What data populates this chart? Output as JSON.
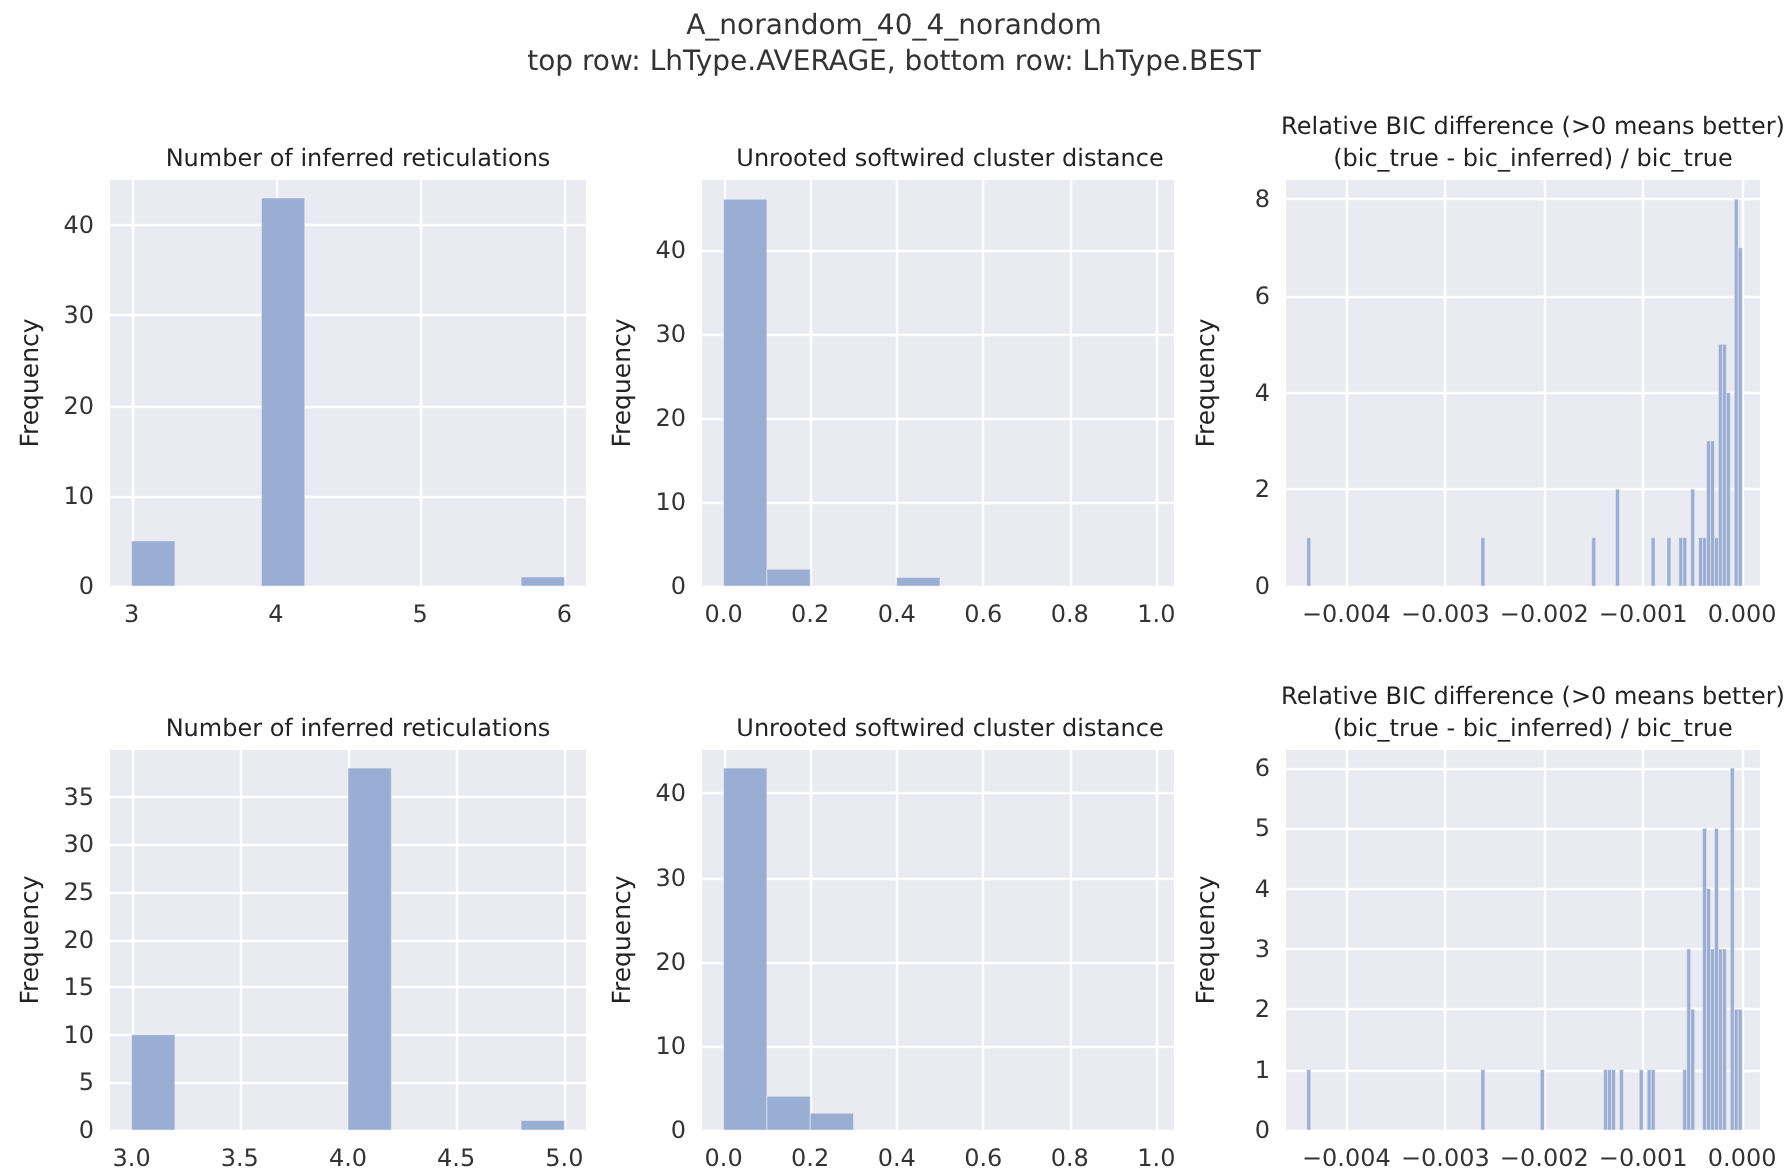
{
  "chart_data": [
    {
      "type": "histogram",
      "title": "Number of inferred reticulations",
      "ylabel": "Frequency",
      "annotations": [
        "A_norandom_40_4_norandom",
        "top row: LhType.AVERAGE, bottom row: LhType.BEST"
      ],
      "bins": [
        3,
        3.3,
        3.6,
        3.9,
        4.2,
        4.5,
        4.8,
        5.1,
        5.4,
        5.7,
        6
      ],
      "values": [
        5,
        0,
        0,
        43,
        0,
        0,
        0,
        0,
        0,
        1
      ],
      "color": "#9aaed3",
      "xlim": [
        2.85,
        6.15
      ],
      "xticks": [
        3,
        4,
        5,
        6
      ],
      "ylim": [
        0,
        45
      ],
      "yticks": [
        0,
        10,
        20,
        30,
        40
      ],
      "grid": true
    },
    {
      "type": "histogram",
      "title": "Unrooted softwired cluster distance",
      "ylabel": "Frequency",
      "bins": [
        0,
        0.1,
        0.2,
        0.3,
        0.4,
        0.5,
        0.6,
        0.7,
        0.8,
        0.9,
        1
      ],
      "values": [
        46,
        2,
        0,
        0,
        1,
        0,
        0,
        0,
        0,
        0
      ],
      "color": "#9aaed3",
      "xlim": [
        -0.05,
        1.05
      ],
      "xticks": [
        {
          "value": 0,
          "label": "0.0"
        },
        {
          "value": 0.2,
          "label": "0.2"
        },
        {
          "value": 0.4,
          "label": "0.4"
        },
        {
          "value": 0.6,
          "label": "0.6"
        },
        {
          "value": 0.8,
          "label": "0.8"
        },
        {
          "value": 1,
          "label": "1.0"
        }
      ],
      "ylim": [
        0,
        48.3
      ],
      "yticks": [
        0,
        10,
        20,
        30,
        40
      ],
      "grid": true
    },
    {
      "type": "histogram",
      "title": "Relative BIC difference (>0 means better)\n(bic_true - bic_inferred) / bic_true",
      "ylabel": "Frequency",
      "bins": [
        -0.0044,
        -0.00436,
        -0.00432,
        -0.00428,
        -0.00424,
        -0.0042,
        -0.00416,
        -0.00412,
        -0.00408,
        -0.00404,
        -0.004,
        -0.00396,
        -0.00392,
        -0.00388,
        -0.00384,
        -0.0038,
        -0.00376,
        -0.00372,
        -0.00368,
        -0.00364,
        -0.0036,
        -0.00356,
        -0.00352,
        -0.00348,
        -0.00344,
        -0.0034,
        -0.00336,
        -0.00332,
        -0.00328,
        -0.00324,
        -0.0032,
        -0.00316,
        -0.00312,
        -0.00308,
        -0.00304,
        -0.003,
        -0.00296,
        -0.00292,
        -0.00288,
        -0.00284,
        -0.0028,
        -0.00276,
        -0.00272,
        -0.00268,
        -0.00264,
        -0.0026,
        -0.00256,
        -0.00252,
        -0.00248,
        -0.00244,
        -0.0024,
        -0.00236,
        -0.00232,
        -0.00228,
        -0.00224,
        -0.0022,
        -0.00216,
        -0.00212,
        -0.00208,
        -0.00204,
        -0.002,
        -0.00196,
        -0.00192,
        -0.00188,
        -0.00184,
        -0.0018,
        -0.00176,
        -0.00172,
        -0.00168,
        -0.00164,
        -0.0016,
        -0.00156,
        -0.00152,
        -0.00148,
        -0.00144,
        -0.0014,
        -0.00136,
        -0.00132,
        -0.00128,
        -0.00124,
        -0.0012,
        -0.00116,
        -0.00112,
        -0.00108,
        -0.00104,
        -0.001,
        -0.00096,
        -0.00092,
        -0.00088,
        -0.00084,
        -0.0008,
        -0.00076,
        -0.00072,
        -0.00068,
        -0.00064,
        -0.0006,
        -0.00056,
        -0.00052,
        -0.00048,
        -0.00044,
        -0.0004,
        -0.00036,
        -0.00032,
        -0.00028,
        -0.00024,
        -0.0002,
        -0.00016,
        -0.00012,
        -8e-05,
        -4e-05,
        0
      ],
      "values": [
        1,
        0,
        0,
        0,
        0,
        0,
        0,
        0,
        0,
        0,
        0,
        0,
        0,
        0,
        0,
        0,
        0,
        0,
        0,
        0,
        0,
        0,
        0,
        0,
        0,
        0,
        0,
        0,
        0,
        0,
        0,
        0,
        0,
        0,
        0,
        0,
        0,
        0,
        0,
        0,
        0,
        0,
        0,
        0,
        1,
        0,
        0,
        0,
        0,
        0,
        0,
        0,
        0,
        0,
        0,
        0,
        0,
        0,
        0,
        0,
        0,
        0,
        0,
        0,
        0,
        0,
        0,
        0,
        0,
        0,
        0,
        0,
        1,
        0,
        0,
        0,
        0,
        0,
        2,
        0,
        0,
        0,
        0,
        0,
        0,
        0,
        0,
        1,
        0,
        0,
        0,
        1,
        0,
        0,
        1,
        1,
        0,
        2,
        0,
        1,
        1,
        3,
        3,
        1,
        5,
        5,
        4,
        0,
        8,
        7
      ],
      "color": "#9aaed3",
      "xlim": [
        -0.00461,
        0.00018
      ],
      "xticks": [
        {
          "value": -0.004,
          "label": "−0.004"
        },
        {
          "value": -0.003,
          "label": "−0.003"
        },
        {
          "value": -0.002,
          "label": "−0.002"
        },
        {
          "value": -0.001,
          "label": "−0.001"
        },
        {
          "value": 0,
          "label": "0.000"
        }
      ],
      "ylim": [
        0,
        8.4
      ],
      "yticks": [
        0,
        2,
        4,
        6,
        8
      ],
      "grid": true
    },
    {
      "type": "histogram",
      "title": "Number of inferred reticulations",
      "ylabel": "Frequency",
      "bins": [
        3,
        3.2,
        3.4,
        3.6,
        3.8,
        4,
        4.2,
        4.4,
        4.6,
        4.8,
        5
      ],
      "values": [
        10,
        0,
        0,
        0,
        0,
        38,
        0,
        0,
        0,
        1
      ],
      "color": "#9aaed3",
      "xlim": [
        2.9,
        5.1
      ],
      "xticks": [
        {
          "value": 3,
          "label": "3.0"
        },
        {
          "value": 3.5,
          "label": "3.5"
        },
        {
          "value": 4,
          "label": "4.0"
        },
        {
          "value": 4.5,
          "label": "4.5"
        },
        {
          "value": 5,
          "label": "5.0"
        }
      ],
      "ylim": [
        0,
        39.9
      ],
      "yticks": [
        0,
        5,
        10,
        15,
        20,
        25,
        30,
        35
      ],
      "grid": true
    },
    {
      "type": "histogram",
      "title": "Unrooted softwired cluster distance",
      "ylabel": "Frequency",
      "bins": [
        0,
        0.1,
        0.2,
        0.3,
        0.4,
        0.5,
        0.6,
        0.7,
        0.8,
        0.9,
        1
      ],
      "values": [
        43,
        4,
        2,
        0,
        0,
        0,
        0,
        0,
        0,
        0
      ],
      "color": "#9aaed3",
      "xlim": [
        -0.05,
        1.05
      ],
      "xticks": [
        {
          "value": 0,
          "label": "0.0"
        },
        {
          "value": 0.2,
          "label": "0.2"
        },
        {
          "value": 0.4,
          "label": "0.4"
        },
        {
          "value": 0.6,
          "label": "0.6"
        },
        {
          "value": 0.8,
          "label": "0.8"
        },
        {
          "value": 1,
          "label": "1.0"
        }
      ],
      "ylim": [
        0,
        45.15
      ],
      "yticks": [
        0,
        10,
        20,
        30,
        40
      ],
      "grid": true
    },
    {
      "type": "histogram",
      "title": "Relative BIC difference (>0 means better)\n(bic_true - bic_inferred) / bic_true",
      "ylabel": "Frequency",
      "bins": [
        -0.0044,
        -0.00436,
        -0.00432,
        -0.00428,
        -0.00424,
        -0.0042,
        -0.00416,
        -0.00412,
        -0.00408,
        -0.00404,
        -0.004,
        -0.00396,
        -0.00392,
        -0.00388,
        -0.00384,
        -0.0038,
        -0.00376,
        -0.00372,
        -0.00368,
        -0.00364,
        -0.0036,
        -0.00356,
        -0.00352,
        -0.00348,
        -0.00344,
        -0.0034,
        -0.00336,
        -0.00332,
        -0.00328,
        -0.00324,
        -0.0032,
        -0.00316,
        -0.00312,
        -0.00308,
        -0.00304,
        -0.003,
        -0.00296,
        -0.00292,
        -0.00288,
        -0.00284,
        -0.0028,
        -0.00276,
        -0.00272,
        -0.00268,
        -0.00264,
        -0.0026,
        -0.00256,
        -0.00252,
        -0.00248,
        -0.00244,
        -0.0024,
        -0.00236,
        -0.00232,
        -0.00228,
        -0.00224,
        -0.0022,
        -0.00216,
        -0.00212,
        -0.00208,
        -0.00204,
        -0.002,
        -0.00196,
        -0.00192,
        -0.00188,
        -0.00184,
        -0.0018,
        -0.00176,
        -0.00172,
        -0.00168,
        -0.00164,
        -0.0016,
        -0.00156,
        -0.00152,
        -0.00148,
        -0.00144,
        -0.0014,
        -0.00136,
        -0.00132,
        -0.00128,
        -0.00124,
        -0.0012,
        -0.00116,
        -0.00112,
        -0.00108,
        -0.00104,
        -0.001,
        -0.00096,
        -0.00092,
        -0.00088,
        -0.00084,
        -0.0008,
        -0.00076,
        -0.00072,
        -0.00068,
        -0.00064,
        -0.0006,
        -0.00056,
        -0.00052,
        -0.00048,
        -0.00044,
        -0.0004,
        -0.00036,
        -0.00032,
        -0.00028,
        -0.00024,
        -0.0002,
        -0.00016,
        -0.00012,
        -8e-05,
        -4e-05,
        0
      ],
      "values": [
        1,
        0,
        0,
        0,
        0,
        0,
        0,
        0,
        0,
        0,
        0,
        0,
        0,
        0,
        0,
        0,
        0,
        0,
        0,
        0,
        0,
        0,
        0,
        0,
        0,
        0,
        0,
        0,
        0,
        0,
        0,
        0,
        0,
        0,
        0,
        0,
        0,
        0,
        0,
        0,
        0,
        0,
        0,
        0,
        1,
        0,
        0,
        0,
        0,
        0,
        0,
        0,
        0,
        0,
        0,
        0,
        0,
        0,
        0,
        1,
        0,
        0,
        0,
        0,
        0,
        0,
        0,
        0,
        0,
        0,
        0,
        0,
        0,
        0,
        0,
        1,
        1,
        1,
        0,
        1,
        0,
        0,
        0,
        0,
        1,
        0,
        1,
        1,
        0,
        0,
        0,
        0,
        0,
        0,
        0,
        1,
        3,
        2,
        0,
        0,
        5,
        4,
        3,
        5,
        3,
        3,
        0,
        6,
        2,
        2
      ],
      "color": "#9aaed3",
      "xlim": [
        -0.00461,
        0.00018
      ],
      "xticks": [
        {
          "value": -0.004,
          "label": "−0.004"
        },
        {
          "value": -0.003,
          "label": "−0.003"
        },
        {
          "value": -0.002,
          "label": "−0.002"
        },
        {
          "value": -0.001,
          "label": "−0.001"
        },
        {
          "value": 0,
          "label": "0.000"
        }
      ],
      "ylim": [
        0,
        6.3
      ],
      "yticks": [
        0,
        1,
        2,
        3,
        4,
        5,
        6
      ],
      "grid": true
    }
  ]
}
